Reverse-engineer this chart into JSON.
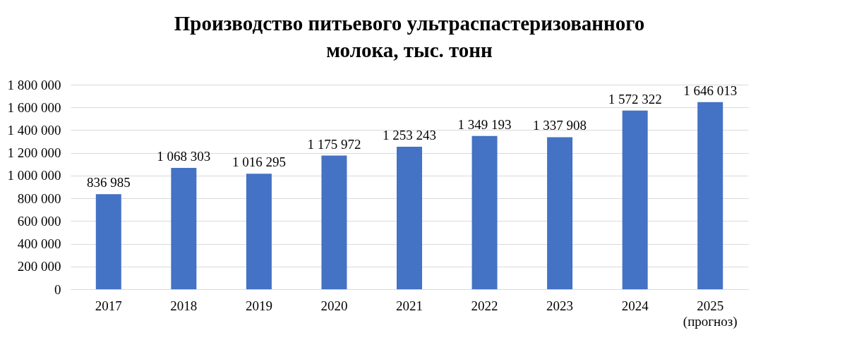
{
  "chart_data": {
    "type": "bar",
    "title": [
      "Производство питьевого ультраспастеризованного",
      "молока, тыс. тонн"
    ],
    "categories": [
      "2017",
      "2018",
      "2019",
      "2020",
      "2021",
      "2022",
      "2023",
      "2024",
      "2025\n(прогноз)"
    ],
    "values": [
      836985,
      1068303,
      1016295,
      1175972,
      1253243,
      1349193,
      1337908,
      1572322,
      1646013
    ],
    "value_labels": [
      "836 985",
      "1 068 303",
      "1 016 295",
      "1 175 972",
      "1 253 243",
      "1 349 193",
      "1 337 908",
      "1 572 322",
      "1 646 013"
    ],
    "color": "#4472c4",
    "ylim": [
      0,
      1800000
    ],
    "yticks": [
      {
        "value": 0,
        "label": "0"
      },
      {
        "value": 200000,
        "label": "200 000"
      },
      {
        "value": 400000,
        "label": "400 000"
      },
      {
        "value": 600000,
        "label": "600 000"
      },
      {
        "value": 800000,
        "label": "800 000"
      },
      {
        "value": 1000000,
        "label": "1 000 000"
      },
      {
        "value": 1200000,
        "label": "1 200 000"
      },
      {
        "value": 1400000,
        "label": "1 400 000"
      },
      {
        "value": 1600000,
        "label": "1 600 000"
      },
      {
        "value": 1800000,
        "label": "1 800 000"
      }
    ],
    "grid": "y"
  }
}
